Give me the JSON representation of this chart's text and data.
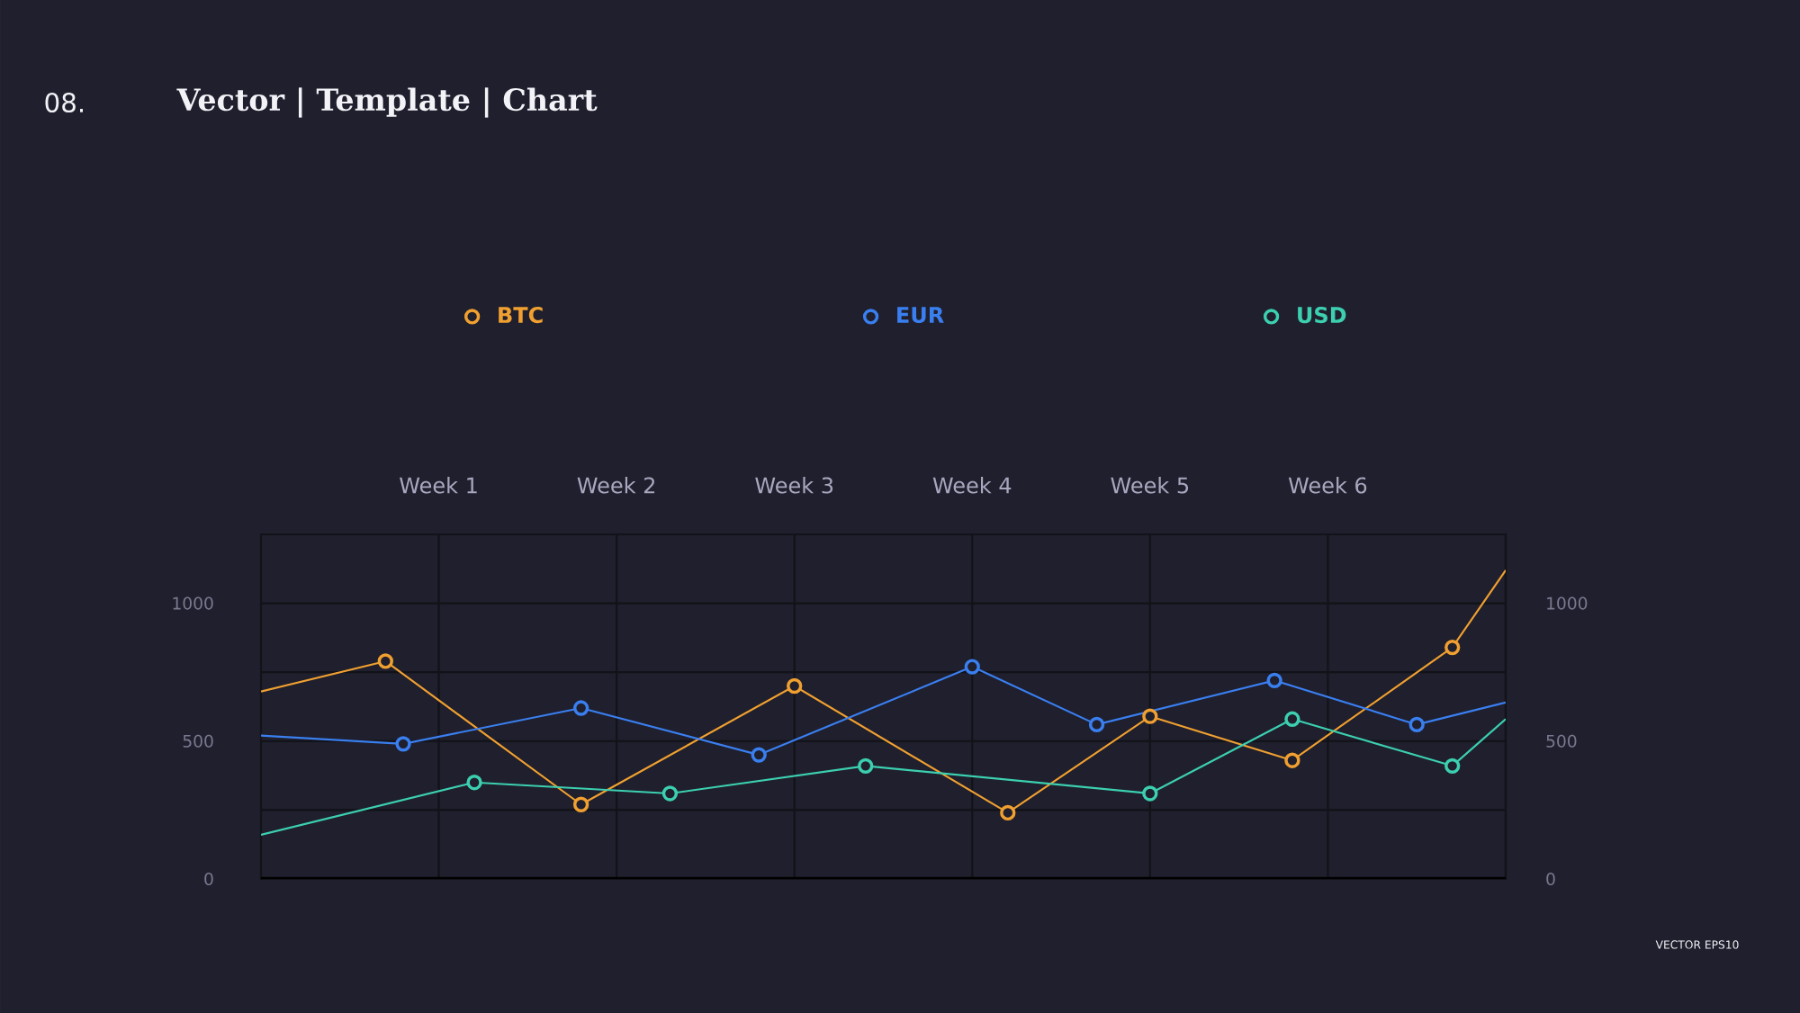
{
  "chart_data": {
    "type": "line",
    "title": "Vector | Template | Chart",
    "annotations": [
      "08.",
      "VECTOR EPS10"
    ],
    "categories": [
      null,
      null,
      null,
      null,
      null,
      null,
      null,
      null,
      null,
      null,
      "Week 1",
      null,
      null,
      null,
      null,
      null,
      null,
      null,
      null,
      null,
      "Week 2",
      null,
      null,
      null,
      null,
      null,
      null,
      null,
      null,
      null,
      "Week 3",
      null,
      null,
      null,
      null,
      null,
      null,
      null,
      null,
      null,
      "Week 4",
      null,
      null,
      null,
      null,
      null,
      null,
      null,
      null,
      null,
      "Week 5",
      null,
      null,
      null,
      null,
      null,
      null,
      null,
      null,
      null,
      "Week 6",
      null,
      null,
      null,
      null,
      null,
      null,
      null,
      null,
      null,
      null
    ],
    "ylim": [
      0,
      1250
    ],
    "yticks": [
      0,
      {
        "value": 250,
        "label": null
      },
      500,
      {
        "value": 750,
        "label": null
      },
      1000
    ],
    "y2lim": [
      0,
      1250
    ],
    "y2ticks": [
      0,
      500,
      1000
    ],
    "grid": true,
    "legend": "top",
    "marker": "circle",
    "line_style": "solid",
    "series": [
      {
        "name": "BTC",
        "color": "#f0a030",
        "values": [
          680,
          null,
          null,
          null,
          null,
          null,
          null,
          790,
          null,
          null,
          null,
          null,
          null,
          null,
          null,
          null,
          null,
          null,
          270,
          null,
          null,
          null,
          null,
          null,
          null,
          null,
          null,
          null,
          null,
          null,
          700,
          null,
          null,
          null,
          null,
          null,
          null,
          null,
          null,
          null,
          null,
          null,
          240,
          null,
          null,
          null,
          null,
          null,
          null,
          null,
          590,
          null,
          null,
          null,
          null,
          null,
          null,
          null,
          430,
          null,
          null,
          null,
          null,
          null,
          null,
          null,
          null,
          840,
          null,
          null,
          1120
        ]
      },
      {
        "name": "EUR",
        "color": "#3a7ff0",
        "values": [
          520,
          null,
          null,
          null,
          null,
          null,
          null,
          null,
          490,
          null,
          null,
          null,
          null,
          null,
          null,
          null,
          null,
          null,
          620,
          null,
          null,
          null,
          null,
          null,
          null,
          null,
          null,
          null,
          450,
          null,
          null,
          null,
          null,
          null,
          null,
          null,
          null,
          null,
          null,
          null,
          770,
          null,
          null,
          null,
          null,
          null,
          null,
          560,
          null,
          null,
          null,
          null,
          null,
          null,
          null,
          null,
          null,
          720,
          null,
          null,
          null,
          null,
          null,
          null,
          null,
          560,
          null,
          null,
          null,
          null,
          640
        ]
      },
      {
        "name": "USD",
        "color": "#3ccfb0",
        "values": [
          160,
          null,
          null,
          null,
          null,
          null,
          null,
          null,
          null,
          null,
          null,
          null,
          350,
          null,
          null,
          null,
          null,
          null,
          null,
          null,
          null,
          null,
          null,
          310,
          null,
          null,
          null,
          null,
          null,
          null,
          null,
          null,
          null,
          null,
          410,
          null,
          null,
          null,
          null,
          null,
          null,
          null,
          null,
          null,
          null,
          null,
          null,
          null,
          null,
          null,
          310,
          null,
          null,
          null,
          null,
          null,
          null,
          null,
          580,
          null,
          null,
          null,
          null,
          null,
          null,
          null,
          null,
          410,
          null,
          null,
          580
        ]
      }
    ]
  }
}
